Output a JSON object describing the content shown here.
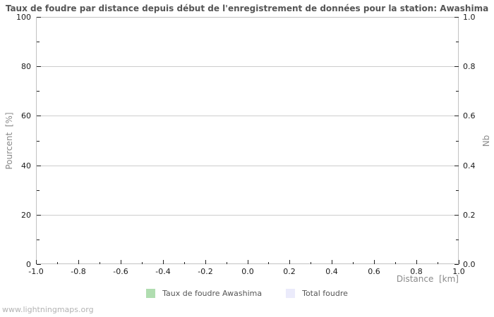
{
  "page": {
    "watermark": "www.lightningmaps.org"
  },
  "chart_data": {
    "type": "bar",
    "title": "Taux de foudre par distance depuis début de l'enregistrement de données pour la station: Awashima",
    "xlabel": "Distance  [km]",
    "ylabel_left": "Pourcent  [%]",
    "ylabel_right": "Nb",
    "xlim": [
      -1.0,
      1.0
    ],
    "ylim_left": [
      0,
      100
    ],
    "ylim_right": [
      0.0,
      1.0
    ],
    "x_tick_labels": [
      "-1.0",
      "-0.8",
      "-0.6",
      "-0.4",
      "-0.2",
      "0.0",
      "0.2",
      "0.4",
      "0.6",
      "0.8",
      "1.0"
    ],
    "y_left_tick_labels": [
      "0",
      "20",
      "40",
      "60",
      "80",
      "100"
    ],
    "y_right_tick_labels": [
      "0.0",
      "0.2",
      "0.4",
      "0.6",
      "0.8",
      "1.0"
    ],
    "grid": "horizontal-major-only",
    "legend_position": "bottom-center",
    "series": [
      {
        "name": "Taux de foudre Awashima",
        "color": "#b0ddb0",
        "values": []
      },
      {
        "name": "Total foudre",
        "color": "#ebebfb",
        "values": []
      }
    ],
    "colors": {
      "plot_border": "#c2c2c2",
      "gridline": "#cdcdcd",
      "tick": "#222222",
      "tick_label": "#1a1a1a",
      "title": "#555555",
      "axis_title": "#8a8a8a",
      "legend_text": "#555555",
      "watermark": "#b3b3b3"
    }
  }
}
